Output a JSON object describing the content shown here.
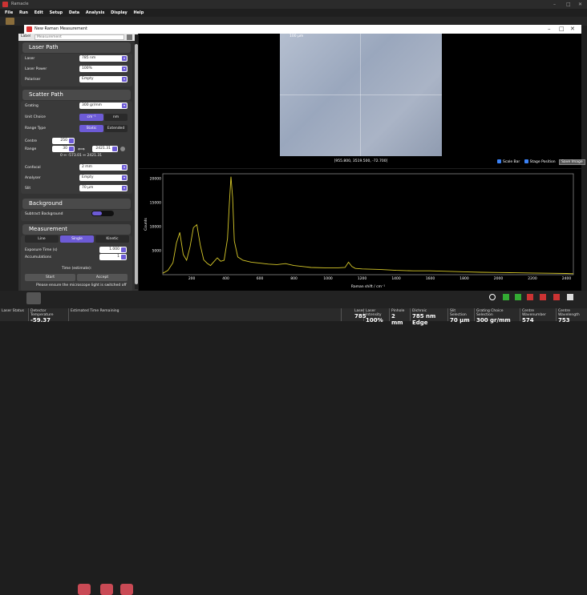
{
  "app": {
    "title": "Ramacle",
    "menu": [
      "File",
      "Run",
      "Edit",
      "Setup",
      "Data",
      "Analysis",
      "Display",
      "Help"
    ]
  },
  "dialog": {
    "title": "New Raman Measurement"
  },
  "label": {
    "caption": "Label",
    "placeholder": "Measurement"
  },
  "laser_path": {
    "title": "Laser Path",
    "laser_label": "Laser",
    "laser_value": "785 nm",
    "power_label": "Laser Power",
    "power_value": "100%",
    "polariser_label": "Polariser",
    "polariser_value": "Empty"
  },
  "scatter_path": {
    "title": "Scatter Path",
    "grating_label": "Grating",
    "grating_value": "300 gr/mm",
    "unit_label": "Unit Choice",
    "unit_options": [
      "cm⁻¹",
      "nm"
    ],
    "range_type_label": "Range Type",
    "range_type_options": [
      "Static",
      "Extended"
    ],
    "centre_label": "Centre",
    "centre_value": "250",
    "range_label": "Range",
    "range_min": "30",
    "range_max": "2421.31",
    "range_note": "0 ↔ -573.01 ↔ 2421.31",
    "confocal_label": "Confocal",
    "confocal_value": "2 mm",
    "analyser_label": "Analyser",
    "analyser_value": "Empty",
    "slit_label": "Slit",
    "slit_value": "70 µm"
  },
  "background": {
    "title": "Background",
    "subtract_label": "Subtract Background"
  },
  "measurement": {
    "title": "Measurement",
    "modes": [
      "Line",
      "Single",
      "Kinetic"
    ],
    "exposure_label": "Exposure Time (s)",
    "exposure_value": "1.000",
    "accum_label": "Accumulations",
    "accum_value": "1",
    "time_label": "Time (estimate):",
    "start_label": "Start",
    "accept_label": "Accept",
    "notice": "Please ensure the microscope light is switched off"
  },
  "image": {
    "scale_label": "100 µm",
    "coords": "[955.800, 3519.500, -72.700]",
    "scale_bar_label": "Scale Bar",
    "stage_label": "Stage Position",
    "save_label": "Save Image"
  },
  "status": {
    "cells": [
      {
        "label": "Laser Status",
        "value": ""
      },
      {
        "label": "Detector Temperature",
        "value": "-59.37"
      },
      {
        "label": "Estimated Time Remaining",
        "value": ""
      },
      {
        "label": "Laser",
        "value": "785"
      },
      {
        "label": "Laser Intensity",
        "value": "100%"
      },
      {
        "label": "Pinhole",
        "value": "2 mm"
      },
      {
        "label": "Dichroic",
        "value": "785 nm Edge"
      },
      {
        "label": "Slit Selection",
        "value": "70 µm"
      },
      {
        "label": "Grating Choice Selection",
        "value": "300 gr/mm"
      },
      {
        "label": "Centre Wavenumber",
        "value": "574"
      },
      {
        "label": "Centre Wavelength",
        "value": "753"
      }
    ]
  },
  "colors": {
    "accent": "#6d5bd6",
    "spectrum": "#d6c829",
    "panel": "#333333"
  },
  "chart_data": {
    "type": "line",
    "xlabel": "Raman shift / cm⁻¹",
    "ylabel": "Counts",
    "xlim": [
      30,
      2440
    ],
    "ylim": [
      0,
      21000
    ],
    "x_ticks": [
      200,
      400,
      600,
      800,
      1000,
      1200,
      1400,
      1600,
      1800,
      2000,
      2200,
      2400
    ],
    "y_ticks": [
      5000,
      10000,
      15000,
      20000
    ],
    "series": [
      {
        "x": [
          30,
          60,
          90,
          110,
          130,
          150,
          170,
          190,
          210,
          230,
          250,
          270,
          290,
          310,
          330,
          350,
          370,
          390,
          410,
          420,
          430,
          440,
          450,
          470,
          500,
          550,
          600,
          650,
          700,
          750,
          800,
          900,
          1000,
          1050,
          1100,
          1120,
          1140,
          1160,
          1200,
          1300,
          1400,
          1500,
          1600,
          1700,
          1800,
          1900,
          2000,
          2100,
          2200,
          2300,
          2400,
          2440
        ],
        "y": [
          300,
          900,
          2500,
          6600,
          8800,
          4200,
          3000,
          5800,
          9800,
          10400,
          6200,
          3100,
          2400,
          1900,
          2700,
          3500,
          2800,
          3000,
          7500,
          14500,
          20400,
          16000,
          7000,
          3700,
          3000,
          2600,
          2400,
          2200,
          2100,
          2300,
          1900,
          1500,
          1400,
          1400,
          1500,
          2600,
          1700,
          1300,
          1200,
          1100,
          900,
          800,
          800,
          700,
          600,
          500,
          450,
          400,
          350,
          300,
          250,
          200
        ]
      }
    ]
  }
}
